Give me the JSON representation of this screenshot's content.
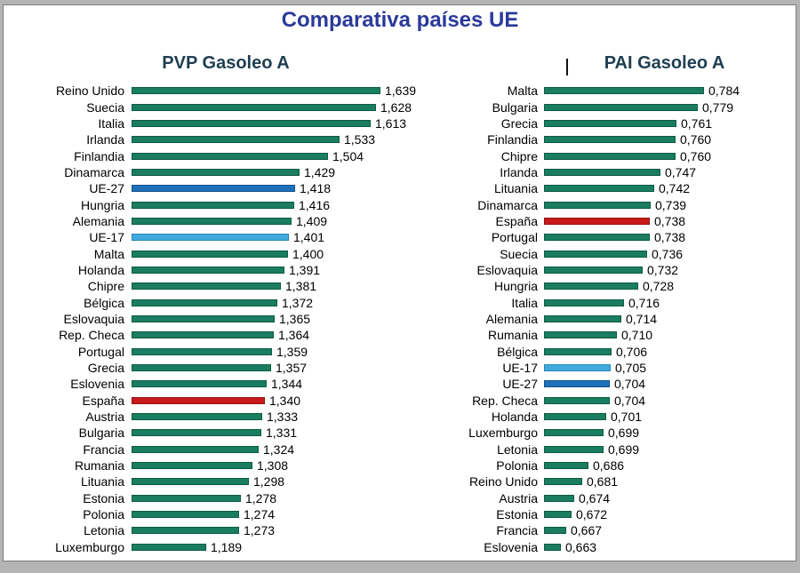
{
  "page": {
    "title": "Comparativa países UE"
  },
  "colors": {
    "ui": {
      "page_title": "#2B3A9A",
      "chart_title": "#1F3E52",
      "frame_gray": "#B4B4B4",
      "frame_line": "#7D7D7D",
      "text": "#000000"
    },
    "green": {
      "fill": "#1A7D5F",
      "edge": "#0D5B44"
    },
    "eu27": {
      "fill": "#1E70B8",
      "edge": "#14518A"
    },
    "eu17": {
      "fill": "#3FAADD",
      "edge": "#2A85B5"
    },
    "spain": {
      "fill": "#C8191B",
      "edge": "#951012"
    }
  },
  "chart_data": [
    {
      "type": "bar",
      "orientation": "horizontal",
      "title": "PVP Gasoleo A",
      "xlabel": "",
      "ylabel": "",
      "xlim": [
        1.0,
        1.65
      ],
      "decimal_style": "comma",
      "legend": "none",
      "grid": false,
      "rows": [
        {
          "label": "Reino Unido",
          "value": 1.639,
          "display": "1,639",
          "color": "green"
        },
        {
          "label": "Suecia",
          "value": 1.628,
          "display": "1,628",
          "color": "green"
        },
        {
          "label": "Italia",
          "value": 1.613,
          "display": "1,613",
          "color": "green"
        },
        {
          "label": "Irlanda",
          "value": 1.533,
          "display": "1,533",
          "color": "green"
        },
        {
          "label": "Finlandia",
          "value": 1.504,
          "display": "1,504",
          "color": "green"
        },
        {
          "label": "Dinamarca",
          "value": 1.429,
          "display": "1,429",
          "color": "green"
        },
        {
          "label": "UE-27",
          "value": 1.418,
          "display": "1,418",
          "color": "eu27"
        },
        {
          "label": "Hungria",
          "value": 1.416,
          "display": "1,416",
          "color": "green"
        },
        {
          "label": "Alemania",
          "value": 1.409,
          "display": "1,409",
          "color": "green"
        },
        {
          "label": "UE-17",
          "value": 1.401,
          "display": "1,401",
          "color": "eu17"
        },
        {
          "label": "Malta",
          "value": 1.4,
          "display": "1,400",
          "color": "green"
        },
        {
          "label": "Holanda",
          "value": 1.391,
          "display": "1,391",
          "color": "green"
        },
        {
          "label": "Chipre",
          "value": 1.381,
          "display": "1,381",
          "color": "green"
        },
        {
          "label": "Bélgica",
          "value": 1.372,
          "display": "1,372",
          "color": "green"
        },
        {
          "label": "Eslovaquia",
          "value": 1.365,
          "display": "1,365",
          "color": "green"
        },
        {
          "label": "Rep. Checa",
          "value": 1.364,
          "display": "1,364",
          "color": "green"
        },
        {
          "label": "Portugal",
          "value": 1.359,
          "display": "1,359",
          "color": "green"
        },
        {
          "label": "Grecia",
          "value": 1.357,
          "display": "1,357",
          "color": "green"
        },
        {
          "label": "Eslovenia",
          "value": 1.344,
          "display": "1,344",
          "color": "green"
        },
        {
          "label": "España",
          "value": 1.34,
          "display": "1,340",
          "color": "spain"
        },
        {
          "label": "Austria",
          "value": 1.333,
          "display": "1,333",
          "color": "green"
        },
        {
          "label": "Bulgaria",
          "value": 1.331,
          "display": "1,331",
          "color": "green"
        },
        {
          "label": "Francia",
          "value": 1.324,
          "display": "1,324",
          "color": "green"
        },
        {
          "label": "Rumania",
          "value": 1.308,
          "display": "1,308",
          "color": "green"
        },
        {
          "label": "Lituania",
          "value": 1.298,
          "display": "1,298",
          "color": "green"
        },
        {
          "label": "Estonia",
          "value": 1.278,
          "display": "1,278",
          "color": "green"
        },
        {
          "label": "Polonia",
          "value": 1.274,
          "display": "1,274",
          "color": "green"
        },
        {
          "label": "Letonia",
          "value": 1.273,
          "display": "1,273",
          "color": "green"
        },
        {
          "label": "Luxemburgo",
          "value": 1.189,
          "display": "1,189",
          "color": "green"
        }
      ]
    },
    {
      "type": "bar",
      "orientation": "horizontal",
      "title": "PAI Gasoleo A",
      "xlabel": "",
      "ylabel": "",
      "xlim": [
        0.65,
        0.79
      ],
      "decimal_style": "comma",
      "legend": "none",
      "grid": false,
      "rows": [
        {
          "label": "Malta",
          "value": 0.784,
          "display": "0,784",
          "color": "green"
        },
        {
          "label": "Bulgaria",
          "value": 0.779,
          "display": "0,779",
          "color": "green"
        },
        {
          "label": "Grecia",
          "value": 0.761,
          "display": "0,761",
          "color": "green"
        },
        {
          "label": "Finlandia",
          "value": 0.76,
          "display": "0,760",
          "color": "green"
        },
        {
          "label": "Chipre",
          "value": 0.76,
          "display": "0,760",
          "color": "green"
        },
        {
          "label": "Irlanda",
          "value": 0.747,
          "display": "0,747",
          "color": "green"
        },
        {
          "label": "Lituania",
          "value": 0.742,
          "display": "0,742",
          "color": "green"
        },
        {
          "label": "Dinamarca",
          "value": 0.739,
          "display": "0,739",
          "color": "green"
        },
        {
          "label": "España",
          "value": 0.738,
          "display": "0,738",
          "color": "spain"
        },
        {
          "label": "Portugal",
          "value": 0.738,
          "display": "0,738",
          "color": "green"
        },
        {
          "label": "Suecia",
          "value": 0.736,
          "display": "0,736",
          "color": "green"
        },
        {
          "label": "Eslovaquia",
          "value": 0.732,
          "display": "0,732",
          "color": "green"
        },
        {
          "label": "Hungria",
          "value": 0.728,
          "display": "0,728",
          "color": "green"
        },
        {
          "label": "Italia",
          "value": 0.716,
          "display": "0,716",
          "color": "green"
        },
        {
          "label": "Alemania",
          "value": 0.714,
          "display": "0,714",
          "color": "green"
        },
        {
          "label": "Rumania",
          "value": 0.71,
          "display": "0,710",
          "color": "green"
        },
        {
          "label": "Bélgica",
          "value": 0.706,
          "display": "0,706",
          "color": "green"
        },
        {
          "label": "UE-17",
          "value": 0.705,
          "display": "0,705",
          "color": "eu17"
        },
        {
          "label": "UE-27",
          "value": 0.704,
          "display": "0,704",
          "color": "eu27"
        },
        {
          "label": "Rep. Checa",
          "value": 0.704,
          "display": "0,704",
          "color": "green"
        },
        {
          "label": "Holanda",
          "value": 0.701,
          "display": "0,701",
          "color": "green"
        },
        {
          "label": "Luxemburgo",
          "value": 0.699,
          "display": "0,699",
          "color": "green"
        },
        {
          "label": "Letonia",
          "value": 0.699,
          "display": "0,699",
          "color": "green"
        },
        {
          "label": "Polonia",
          "value": 0.686,
          "display": "0,686",
          "color": "green"
        },
        {
          "label": "Reino Unido",
          "value": 0.681,
          "display": "0,681",
          "color": "green"
        },
        {
          "label": "Austria",
          "value": 0.674,
          "display": "0,674",
          "color": "green"
        },
        {
          "label": "Estonia",
          "value": 0.672,
          "display": "0,672",
          "color": "green"
        },
        {
          "label": "Francia",
          "value": 0.667,
          "display": "0,667",
          "color": "green"
        },
        {
          "label": "Eslovenia",
          "value": 0.663,
          "display": "0,663",
          "color": "green"
        }
      ]
    }
  ]
}
